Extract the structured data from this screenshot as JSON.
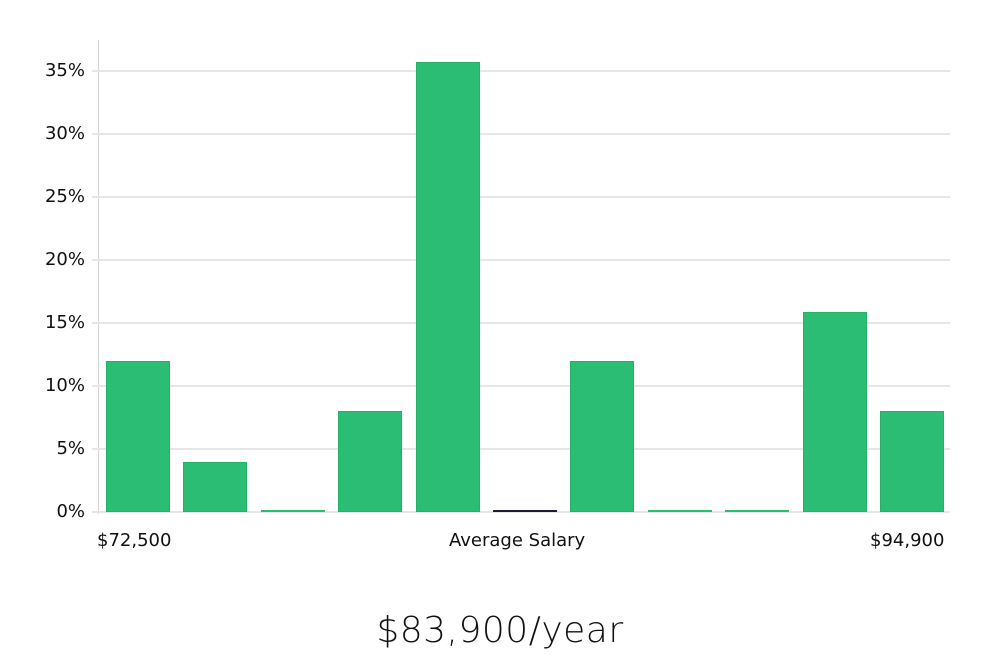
{
  "chart_data": {
    "type": "bar",
    "title": "",
    "xlabel": "Average Salary",
    "ylabel": "",
    "ylim": [
      0,
      37
    ],
    "yticks": [
      "0%",
      "5%",
      "10%",
      "15%",
      "20%",
      "25%",
      "30%",
      "35%"
    ],
    "x_range_labels": {
      "min": "$72,500",
      "max": "$94,900"
    },
    "categories": [
      "bin1",
      "bin2",
      "bin3",
      "bin4",
      "bin5",
      "bin6",
      "bin7",
      "bin8",
      "bin9",
      "bin10",
      "bin11"
    ],
    "values": [
      12,
      4,
      0,
      8,
      35.7,
      0,
      12,
      0,
      0,
      15.9,
      8
    ],
    "average_marker_bin": 6,
    "grid": true,
    "legend": null,
    "bar_color": "#2bbd74",
    "marker_color": "#1a1a3a"
  },
  "axis": {
    "x_min_label": "$72,500",
    "x_center_label": "Average Salary",
    "x_max_label": "$94,900"
  },
  "summary": {
    "average_salary": "$83,900/year"
  }
}
